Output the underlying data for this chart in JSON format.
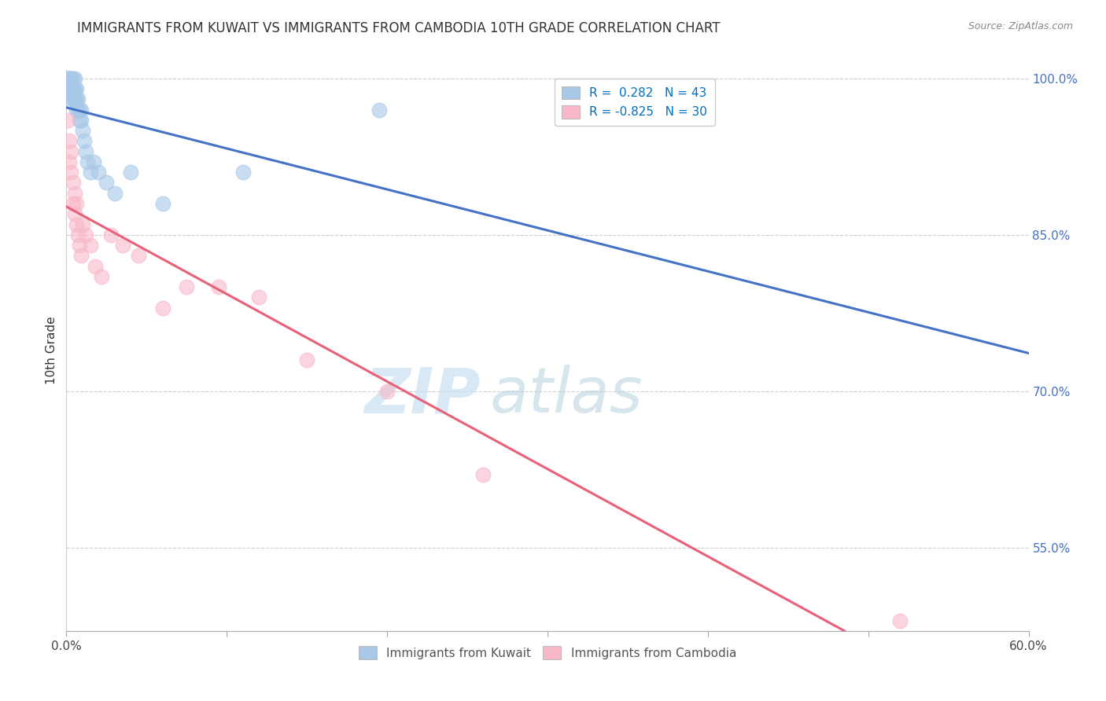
{
  "title": "IMMIGRANTS FROM KUWAIT VS IMMIGRANTS FROM CAMBODIA 10TH GRADE CORRELATION CHART",
  "source": "Source: ZipAtlas.com",
  "ylabel": "10th Grade",
  "xlim": [
    0.0,
    0.6
  ],
  "ylim": [
    0.47,
    1.008
  ],
  "kuwait_R": 0.282,
  "kuwait_N": 43,
  "cambodia_R": -0.825,
  "cambodia_N": 30,
  "kuwait_color": "#a8c8e8",
  "cambodia_color": "#f8b8c8",
  "kuwait_line_color": "#4472c4",
  "cambodia_line_color": "#e8607a",
  "legend_r_color": "#0070c0",
  "watermark_zip": "ZIP",
  "watermark_atlas": "atlas",
  "grid_color": "#d0d0d0",
  "right_yticks": [
    0.55,
    0.7,
    0.85,
    1.0
  ],
  "right_yticklabels": [
    "55.0%",
    "70.0%",
    "85.0%",
    "100.0%"
  ],
  "kuwait_x": [
    0.001,
    0.001,
    0.001,
    0.002,
    0.002,
    0.002,
    0.002,
    0.002,
    0.003,
    0.003,
    0.003,
    0.003,
    0.003,
    0.004,
    0.004,
    0.004,
    0.004,
    0.005,
    0.005,
    0.005,
    0.005,
    0.006,
    0.006,
    0.006,
    0.007,
    0.007,
    0.008,
    0.008,
    0.009,
    0.009,
    0.01,
    0.011,
    0.012,
    0.013,
    0.015,
    0.017,
    0.02,
    0.025,
    0.03,
    0.04,
    0.06,
    0.11,
    0.195
  ],
  "kuwait_y": [
    0.99,
    1.0,
    1.0,
    0.99,
    1.0,
    1.0,
    1.0,
    0.99,
    0.99,
    0.98,
    1.0,
    1.0,
    0.99,
    0.98,
    0.99,
    1.0,
    0.99,
    0.98,
    0.99,
    1.0,
    0.98,
    0.97,
    0.98,
    0.99,
    0.97,
    0.98,
    0.96,
    0.97,
    0.96,
    0.97,
    0.95,
    0.94,
    0.93,
    0.92,
    0.91,
    0.92,
    0.91,
    0.9,
    0.89,
    0.91,
    0.88,
    0.91,
    0.97
  ],
  "cambodia_x": [
    0.001,
    0.002,
    0.002,
    0.003,
    0.003,
    0.004,
    0.004,
    0.005,
    0.005,
    0.006,
    0.006,
    0.007,
    0.008,
    0.009,
    0.01,
    0.012,
    0.015,
    0.018,
    0.022,
    0.028,
    0.035,
    0.045,
    0.06,
    0.075,
    0.095,
    0.12,
    0.15,
    0.2,
    0.26,
    0.52
  ],
  "cambodia_y": [
    0.96,
    0.94,
    0.92,
    0.93,
    0.91,
    0.9,
    0.88,
    0.87,
    0.89,
    0.86,
    0.88,
    0.85,
    0.84,
    0.83,
    0.86,
    0.85,
    0.84,
    0.82,
    0.81,
    0.85,
    0.84,
    0.83,
    0.78,
    0.8,
    0.8,
    0.79,
    0.73,
    0.7,
    0.62,
    0.48
  ]
}
